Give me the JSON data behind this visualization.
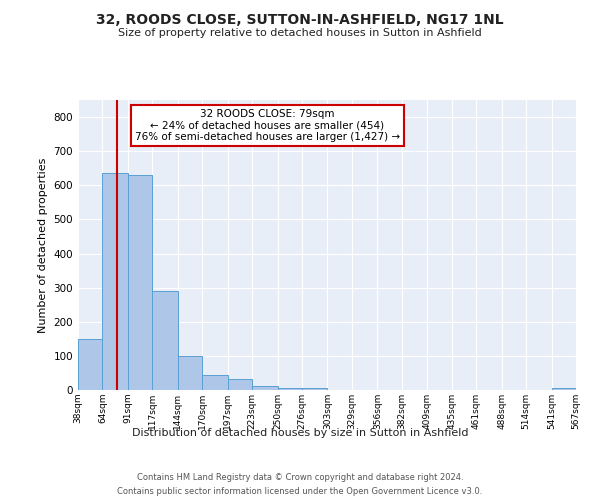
{
  "title": "32, ROODS CLOSE, SUTTON-IN-ASHFIELD, NG17 1NL",
  "subtitle": "Size of property relative to detached houses in Sutton in Ashfield",
  "xlabel": "Distribution of detached houses by size in Sutton in Ashfield",
  "ylabel": "Number of detached properties",
  "footnote1": "Contains HM Land Registry data © Crown copyright and database right 2024.",
  "footnote2": "Contains public sector information licensed under the Open Government Licence v3.0.",
  "bin_edges": [
    38,
    64,
    91,
    117,
    144,
    170,
    197,
    223,
    250,
    276,
    303,
    329,
    356,
    382,
    409,
    435,
    461,
    488,
    514,
    541,
    567
  ],
  "bar_heights": [
    150,
    635,
    630,
    290,
    100,
    45,
    32,
    12,
    5,
    5,
    0,
    0,
    0,
    0,
    0,
    0,
    0,
    0,
    0,
    5
  ],
  "bar_color": "#aec6e8",
  "bar_edge_color": "#5a9fd4",
  "background_color": "#e8eef8",
  "vline_x": 79,
  "vline_color": "#cc0000",
  "ylim": [
    0,
    850
  ],
  "yticks": [
    0,
    100,
    200,
    300,
    400,
    500,
    600,
    700,
    800
  ],
  "annotation_title": "32 ROODS CLOSE: 79sqm",
  "annotation_line1": "← 24% of detached houses are smaller (454)",
  "annotation_line2": "76% of semi-detached houses are larger (1,427) →",
  "annotation_box_color": "#ffffff",
  "annotation_box_edge_color": "#cc0000",
  "tick_labels": [
    "38sqm",
    "64sqm",
    "91sqm",
    "117sqm",
    "144sqm",
    "170sqm",
    "197sqm",
    "223sqm",
    "250sqm",
    "276sqm",
    "303sqm",
    "329sqm",
    "356sqm",
    "382sqm",
    "409sqm",
    "435sqm",
    "461sqm",
    "488sqm",
    "514sqm",
    "541sqm",
    "567sqm"
  ]
}
